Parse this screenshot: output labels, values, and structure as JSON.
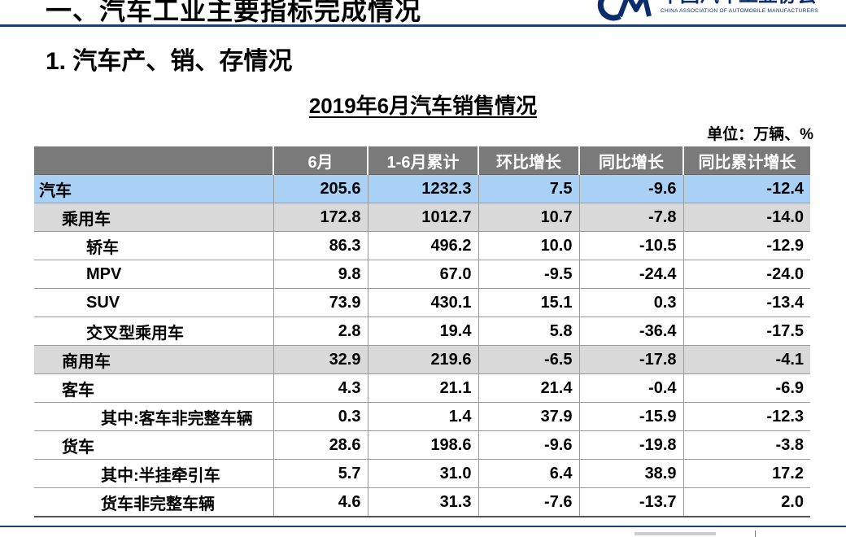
{
  "header": {
    "top_title": "一、汽车工业主要指标完成情况",
    "logo_cn": "中国汽车工业协会",
    "logo_en": "CHINA ASSOCIATION OF AUTOMOBILE MANUFACTURERS"
  },
  "section_title": "1. 汽车产、销、存情况",
  "table_title": "2019年6月汽车销售情况",
  "unit": "单位：万辆、%",
  "columns": [
    "",
    "6月",
    "1-6月累计",
    "环比增长",
    "同比增长",
    "同比累计增长"
  ],
  "rows": [
    {
      "name": "汽车",
      "level": 0,
      "values": [
        "205.6",
        "1232.3",
        "7.5",
        "-9.6",
        "-12.4"
      ]
    },
    {
      "name": "乘用车",
      "level": 1,
      "values": [
        "172.8",
        "1012.7",
        "10.7",
        "-7.8",
        "-14.0"
      ]
    },
    {
      "name": "轿车",
      "level": 2,
      "values": [
        "86.3",
        "496.2",
        "10.0",
        "-10.5",
        "-12.9"
      ]
    },
    {
      "name": "MPV",
      "level": 2,
      "values": [
        "9.8",
        "67.0",
        "-9.5",
        "-24.4",
        "-24.0"
      ]
    },
    {
      "name": "SUV",
      "level": 2,
      "values": [
        "73.9",
        "430.1",
        "15.1",
        "0.3",
        "-13.4"
      ]
    },
    {
      "name": "交叉型乘用车",
      "level": 2,
      "values": [
        "2.8",
        "19.4",
        "5.8",
        "-36.4",
        "-17.5"
      ]
    },
    {
      "name": "商用车",
      "level": 1,
      "values": [
        "32.9",
        "219.6",
        "-6.5",
        "-17.8",
        "-4.1"
      ]
    },
    {
      "name": "客车",
      "level": 3,
      "values": [
        "4.3",
        "21.1",
        "21.4",
        "-0.4",
        "-6.9"
      ]
    },
    {
      "name": "其中:客车非完整车辆",
      "level": 4,
      "values": [
        "0.3",
        "1.4",
        "37.9",
        "-15.9",
        "-12.3"
      ]
    },
    {
      "name": "货车",
      "level": 3,
      "values": [
        "28.6",
        "198.6",
        "-9.6",
        "-19.8",
        "-3.8"
      ]
    },
    {
      "name": "其中:半挂牵引车",
      "level": 4,
      "values": [
        "5.7",
        "31.0",
        "6.4",
        "38.9",
        "17.2"
      ]
    },
    {
      "name": "货车非完整车辆",
      "level": 4,
      "values": [
        "4.6",
        "31.3",
        "-7.6",
        "-13.7",
        "2.0"
      ]
    }
  ],
  "colors": {
    "header_bg": "#7a7a7a",
    "row_total_bg": "#a9d1f5",
    "row_subtotal_bg": "#d9d9d9",
    "accent_line": "#1f3f7a"
  }
}
